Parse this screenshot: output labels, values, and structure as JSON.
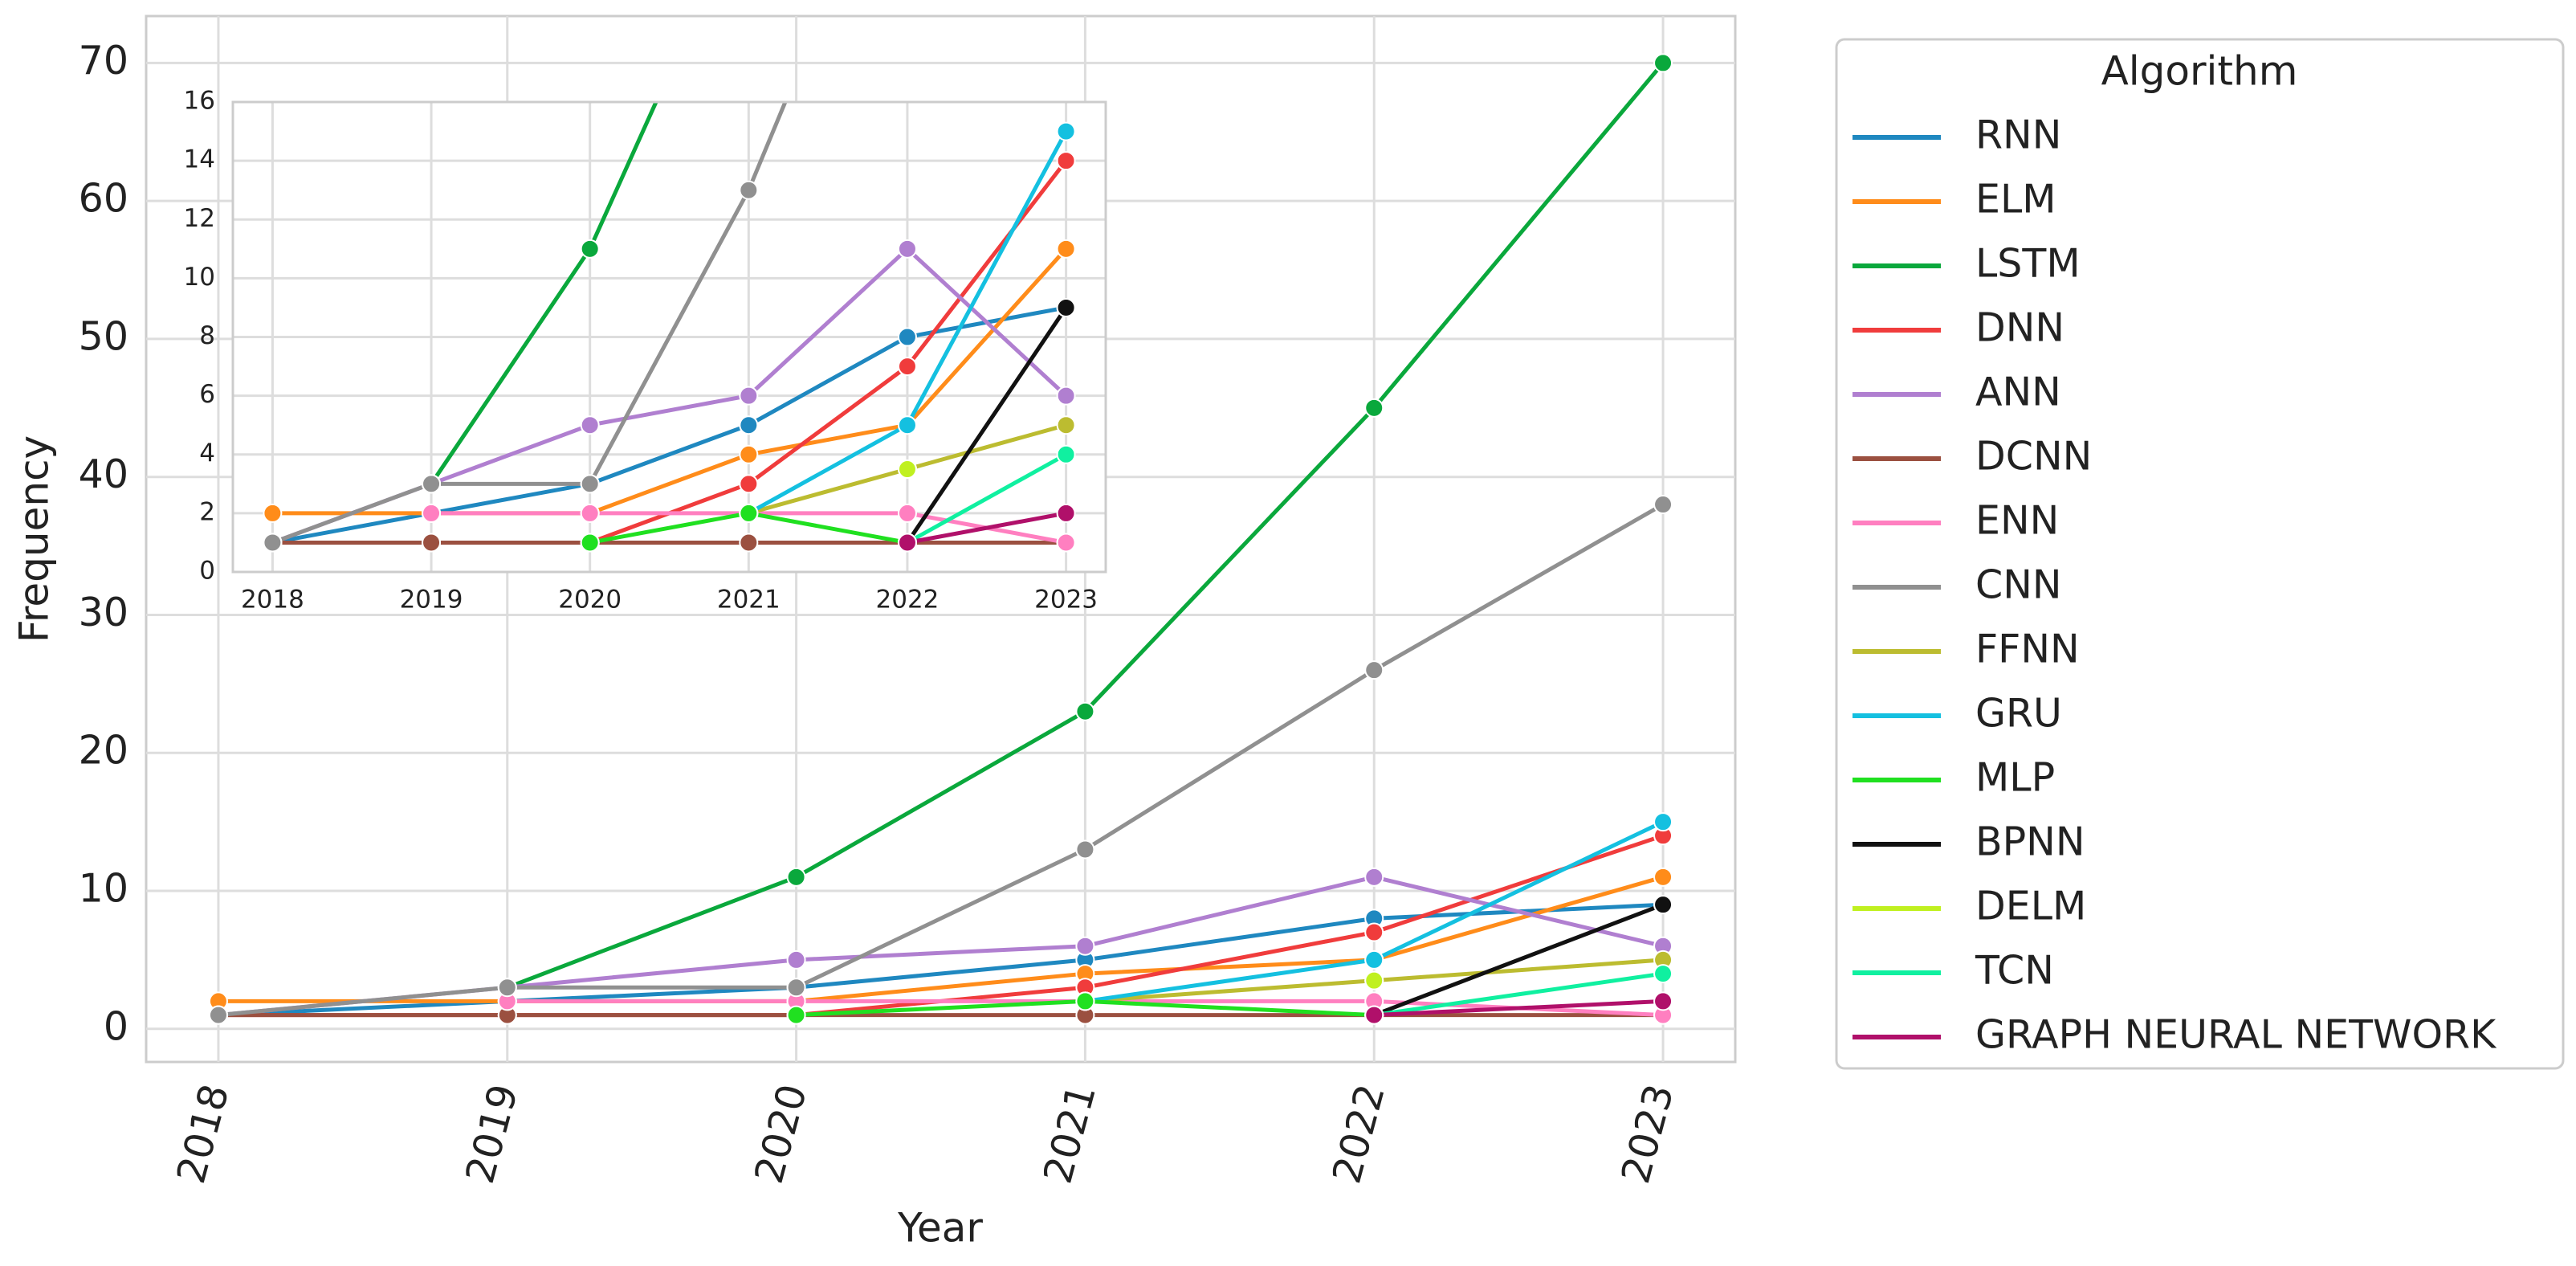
{
  "chart_data": {
    "type": "line",
    "x_label": "Year",
    "y_label": "Frequency",
    "x": [
      2018,
      2019,
      2020,
      2021,
      2022,
      2023
    ],
    "xlim": [
      2017.75,
      2023.25
    ],
    "xticks": [
      2018,
      2019,
      2020,
      2021,
      2022,
      2023
    ],
    "ylim": [
      -2.4,
      73.4
    ],
    "yticks": [
      0,
      10,
      20,
      30,
      40,
      50,
      60,
      70
    ],
    "grid": true,
    "legend_title": "Algorithm",
    "legend_position": "outside right",
    "series": [
      {
        "name": "RNN",
        "color": "#1f88c0",
        "values": [
          1,
          2,
          3,
          5,
          8,
          9
        ]
      },
      {
        "name": "ELM",
        "color": "#ff8c1a",
        "values": [
          2,
          2,
          2,
          4,
          5,
          11
        ]
      },
      {
        "name": "LSTM",
        "color": "#0aa83c",
        "values": [
          null,
          3,
          11,
          23,
          45,
          70
        ]
      },
      {
        "name": "DNN",
        "color": "#f03c3c",
        "values": [
          1,
          1,
          1,
          3,
          7,
          14
        ]
      },
      {
        "name": "ANN",
        "color": "#b07fd0",
        "values": [
          1,
          3,
          5,
          6,
          11,
          6
        ]
      },
      {
        "name": "DCNN",
        "color": "#9b5040",
        "values": [
          1,
          1,
          1,
          1,
          1,
          1
        ]
      },
      {
        "name": "ENN",
        "color": "#ff7fc0",
        "values": [
          null,
          2,
          2,
          2,
          2,
          1
        ]
      },
      {
        "name": "CNN",
        "color": "#909090",
        "values": [
          1,
          3,
          3,
          13,
          26,
          38
        ]
      },
      {
        "name": "FFNN",
        "color": "#bcbc30",
        "values": [
          null,
          null,
          null,
          2,
          3.5,
          5
        ]
      },
      {
        "name": "GRU",
        "color": "#14c0e0",
        "values": [
          null,
          null,
          null,
          2,
          5,
          15
        ]
      },
      {
        "name": "MLP",
        "color": "#20e020",
        "values": [
          null,
          null,
          1,
          2,
          1,
          null
        ]
      },
      {
        "name": "BPNN",
        "color": "#111111",
        "values": [
          null,
          null,
          null,
          null,
          1,
          9
        ]
      },
      {
        "name": "DELM",
        "color": "#c0f020",
        "values": [
          null,
          null,
          null,
          null,
          3.5,
          null
        ]
      },
      {
        "name": "TCN",
        "color": "#10f0a0",
        "values": [
          null,
          null,
          null,
          null,
          1,
          4
        ]
      },
      {
        "name": "GRAPH NEURAL NETWORK",
        "color": "#b0106a",
        "values": [
          null,
          null,
          null,
          null,
          1,
          2
        ]
      }
    ],
    "inset": {
      "xlim": [
        2017.75,
        2023.25
      ],
      "xticks": [
        2018,
        2019,
        2020,
        2021,
        2022,
        2023
      ],
      "ylim": [
        0,
        16
      ],
      "yticks": [
        0,
        2,
        4,
        6,
        8,
        10,
        12,
        14,
        16
      ]
    }
  }
}
